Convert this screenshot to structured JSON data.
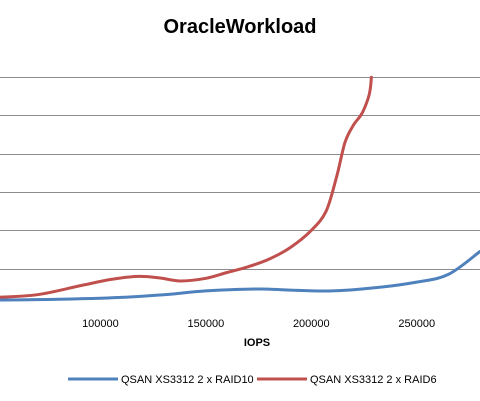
{
  "chart_data": {
    "type": "line",
    "title": "OracleWorkload",
    "xlabel": "IOPS",
    "ylabel": "",
    "xlim": [
      50000,
      280000
    ],
    "ylim": [
      1,
      7.5
    ],
    "x_ticks": [
      100000,
      150000,
      200000,
      250000
    ],
    "x_tick_labels": [
      "100000",
      "150000",
      "200000",
      "250000"
    ],
    "y_gridlines": [
      2,
      3,
      4,
      5,
      6,
      7
    ],
    "grid": true,
    "legend_position": "bottom",
    "series": [
      {
        "name": "QSAN XS3312 2 x RAID10",
        "color": "#4f81bd",
        "x": [
          50000,
          80000,
          110000,
          130000,
          150000,
          175000,
          190000,
          210000,
          230000,
          250000,
          265000,
          280000
        ],
        "y": [
          1.18,
          1.2,
          1.25,
          1.32,
          1.42,
          1.47,
          1.44,
          1.42,
          1.5,
          1.65,
          1.85,
          2.45
        ]
      },
      {
        "name": "QSAN XS3312 2 x RAID6",
        "color": "#c0504d",
        "x": [
          50000,
          70000,
          90000,
          105000,
          118000,
          128000,
          138000,
          150000,
          160000,
          170000,
          180000,
          190000,
          200000,
          207000,
          212000,
          216000,
          220000,
          224000,
          227000,
          228000,
          228500
        ],
        "y": [
          1.25,
          1.32,
          1.55,
          1.72,
          1.8,
          1.76,
          1.68,
          1.75,
          1.9,
          2.05,
          2.25,
          2.55,
          3.0,
          3.5,
          4.4,
          5.3,
          5.75,
          6.05,
          6.45,
          6.7,
          7.0
        ]
      }
    ]
  }
}
